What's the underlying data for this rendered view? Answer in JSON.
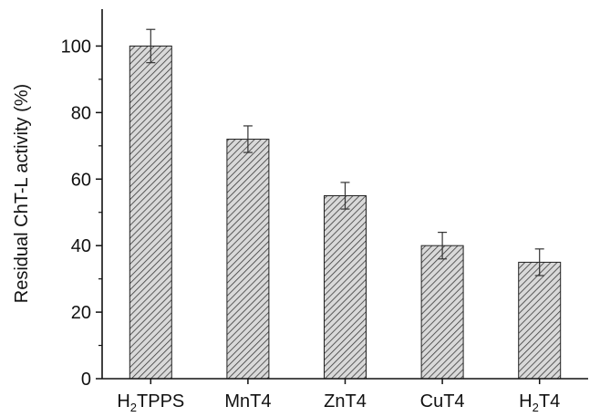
{
  "chart_data": {
    "type": "bar",
    "title": "",
    "xlabel": "",
    "ylabel": "Residual ChT-L activity (%)",
    "categories": [
      "H2TPPS",
      "MnT4",
      "ZnT4",
      "CuT4",
      "H2T4"
    ],
    "category_labels": [
      {
        "main": "H",
        "sub": "2",
        "rest": "TPPS"
      },
      {
        "main": "MnT4",
        "sub": "",
        "rest": ""
      },
      {
        "main": "ZnT4",
        "sub": "",
        "rest": ""
      },
      {
        "main": "CuT4",
        "sub": "",
        "rest": ""
      },
      {
        "main": "H",
        "sub": "2",
        "rest": "T4"
      }
    ],
    "values": [
      100,
      72,
      55,
      40,
      35
    ],
    "errors": [
      5,
      4,
      4,
      4,
      4
    ],
    "ylim": [
      0,
      110
    ],
    "yticks": [
      0,
      20,
      40,
      60,
      80,
      100
    ],
    "ytick_labels": [
      "0",
      "20",
      "40",
      "60",
      "80",
      "100"
    ],
    "grid": false,
    "legend": "none",
    "bar_fill": "hatched",
    "colors": {
      "bar_fill": "#d9d9d9",
      "hatch": "#3a3a3a",
      "axis": "#111111",
      "error_bar": "#333333"
    }
  }
}
